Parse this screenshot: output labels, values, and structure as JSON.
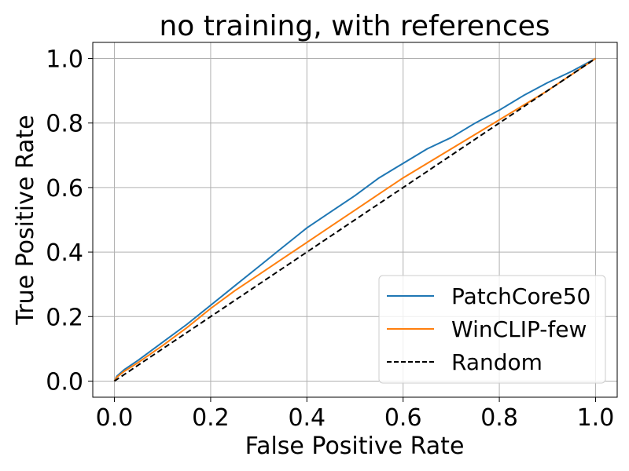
{
  "chart_data": {
    "type": "line",
    "title": "no training, with references",
    "xlabel": "False Positive Rate",
    "ylabel": "True Positive Rate",
    "xlim": [
      -0.045,
      1.045
    ],
    "ylim": [
      -0.05,
      1.05
    ],
    "xticks": [
      0.0,
      0.2,
      0.4,
      0.6,
      0.8,
      1.0
    ],
    "yticks": [
      0.0,
      0.2,
      0.4,
      0.6,
      0.8,
      1.0
    ],
    "xtick_labels": [
      "0.0",
      "0.2",
      "0.4",
      "0.6",
      "0.8",
      "1.0"
    ],
    "ytick_labels": [
      "0.0",
      "0.2",
      "0.4",
      "0.6",
      "0.8",
      "1.0"
    ],
    "grid": true,
    "legend_position": "lower-right",
    "series": [
      {
        "name": "PatchCore50",
        "color": "#1f77b4",
        "style": "solid",
        "x": [
          0.0,
          0.005,
          0.02,
          0.05,
          0.1,
          0.15,
          0.2,
          0.25,
          0.3,
          0.35,
          0.4,
          0.45,
          0.5,
          0.55,
          0.6,
          0.65,
          0.7,
          0.75,
          0.8,
          0.85,
          0.9,
          0.95,
          1.0
        ],
        "y": [
          0.0,
          0.015,
          0.035,
          0.065,
          0.12,
          0.175,
          0.235,
          0.295,
          0.355,
          0.415,
          0.475,
          0.525,
          0.575,
          0.63,
          0.675,
          0.72,
          0.755,
          0.8,
          0.84,
          0.885,
          0.925,
          0.96,
          1.0
        ]
      },
      {
        "name": "WinCLIP-few",
        "color": "#ff7f0e",
        "style": "solid",
        "x": [
          0.0,
          0.005,
          0.02,
          0.05,
          0.1,
          0.15,
          0.2,
          0.25,
          0.3,
          0.35,
          0.4,
          0.45,
          0.5,
          0.55,
          0.6,
          0.65,
          0.7,
          0.75,
          0.8,
          0.85,
          0.9,
          0.95,
          1.0
        ],
        "y": [
          0.0,
          0.012,
          0.03,
          0.058,
          0.11,
          0.165,
          0.225,
          0.28,
          0.33,
          0.38,
          0.43,
          0.48,
          0.53,
          0.58,
          0.63,
          0.675,
          0.72,
          0.765,
          0.81,
          0.855,
          0.9,
          0.95,
          1.0
        ]
      },
      {
        "name": "Random",
        "color": "#000000",
        "style": "dashed",
        "x": [
          0.0,
          1.0
        ],
        "y": [
          0.0,
          1.0
        ]
      }
    ]
  }
}
